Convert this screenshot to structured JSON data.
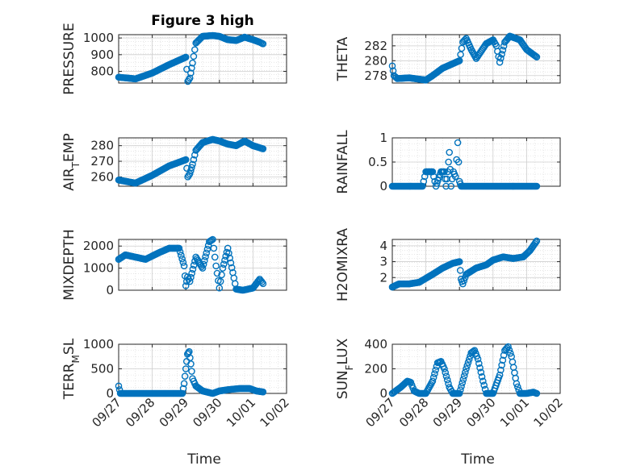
{
  "figure": {
    "title": "Figure 3 high",
    "marker_color": "#0072BD"
  },
  "chart_data": [
    {
      "type": "scatter",
      "key": "pressure",
      "title": "Figure 3 high",
      "ylabel": "PRESSURE",
      "ylabel_parts": [
        [
          "PRESSURE",
          "n"
        ]
      ],
      "xlabel": "",
      "xlim": [
        "09/27",
        "10/02"
      ],
      "ylim": [
        730,
        1020
      ],
      "yticks": [
        800,
        900,
        1000
      ],
      "yticklabels": [
        "800",
        "900",
        "1000"
      ],
      "xticklabels": [],
      "grid": true,
      "x_days": [
        0.0,
        0.5,
        1.0,
        1.5,
        2.0,
        2.06,
        2.12,
        2.2,
        2.3,
        2.5,
        2.8,
        3.0,
        3.25,
        3.5,
        3.75,
        4.0,
        4.2,
        4.3
      ],
      "y": [
        765,
        755,
        790,
        840,
        885,
        740,
        760,
        850,
        970,
        1010,
        1015,
        1010,
        990,
        985,
        1005,
        990,
        975,
        965
      ]
    },
    {
      "type": "scatter",
      "key": "theta",
      "ylabel": "THETA",
      "ylabel_parts": [
        [
          "THETA",
          "n"
        ]
      ],
      "xlabel": "",
      "xlim": [
        "09/27",
        "10/02"
      ],
      "ylim": [
        277,
        283.5
      ],
      "yticks": [
        278,
        280,
        282
      ],
      "yticklabels": [
        "278",
        "280",
        "282"
      ],
      "xticklabels": [],
      "grid": true,
      "x_days": [
        0.0,
        0.05,
        0.15,
        0.5,
        1.0,
        1.2,
        1.5,
        2.0,
        2.1,
        2.2,
        2.35,
        2.5,
        2.8,
        3.0,
        3.1,
        3.2,
        3.35,
        3.5,
        3.8,
        4.0,
        4.3
      ],
      "y": [
        279.3,
        278.0,
        277.6,
        277.7,
        277.4,
        278.0,
        279.0,
        280.0,
        282.5,
        283.0,
        281.5,
        280.3,
        282.3,
        282.8,
        282.0,
        279.8,
        282.5,
        283.3,
        282.8,
        281.5,
        280.5
      ]
    },
    {
      "type": "scatter",
      "key": "air_temp",
      "ylabel": "AIR_TEMP",
      "ylabel_parts": [
        [
          "AIR",
          "n"
        ],
        [
          "T",
          "sub"
        ],
        [
          "EMP",
          "n"
        ]
      ],
      "xlabel": "",
      "xlim": [
        "09/27",
        "10/02"
      ],
      "ylim": [
        254,
        285
      ],
      "yticks": [
        260,
        270,
        280
      ],
      "yticklabels": [
        "260",
        "270",
        "280"
      ],
      "xticklabels": [],
      "grid": true,
      "x_days": [
        0.0,
        0.5,
        1.0,
        1.5,
        2.0,
        2.06,
        2.12,
        2.2,
        2.3,
        2.5,
        2.8,
        3.0,
        3.25,
        3.5,
        3.75,
        4.0,
        4.3
      ],
      "y": [
        258,
        256,
        261,
        267,
        271,
        260,
        262,
        268,
        277,
        282,
        284,
        283,
        281,
        280,
        283,
        280,
        278
      ]
    },
    {
      "type": "scatter",
      "key": "rainfall",
      "ylabel": "RAINFALL",
      "ylabel_parts": [
        [
          "RAINFALL",
          "n"
        ]
      ],
      "xlabel": "",
      "xlim": [
        "09/27",
        "10/02"
      ],
      "ylim": [
        0,
        1
      ],
      "yticks": [
        0,
        0.5,
        1
      ],
      "yticklabels": [
        "0",
        "0.5",
        "1"
      ],
      "xticklabels": [],
      "grid": true,
      "x_days": [
        0.0,
        0.5,
        0.9,
        1.0,
        1.2,
        1.3,
        1.45,
        1.55,
        1.6,
        1.65,
        1.7,
        1.75,
        1.82,
        1.88,
        1.95,
        2.0,
        2.05,
        2.2,
        2.5,
        3.0,
        3.5,
        4.0,
        4.3
      ],
      "y": [
        0,
        0,
        0,
        0.3,
        0.3,
        0,
        0.3,
        0.3,
        0,
        0.3,
        0.7,
        0,
        0.3,
        0.2,
        0.9,
        0.1,
        0,
        0,
        0,
        0,
        0,
        0,
        0
      ]
    },
    {
      "type": "scatter",
      "key": "mixdepth",
      "ylabel": "MIXDEPTH",
      "ylabel_parts": [
        [
          "MIXDEPTH",
          "n"
        ]
      ],
      "xlabel": "",
      "xlim": [
        "09/27",
        "10/02"
      ],
      "ylim": [
        0,
        2300
      ],
      "yticks": [
        0,
        1000,
        2000
      ],
      "yticklabels": [
        "0",
        "1000",
        "2000"
      ],
      "xticklabels": [],
      "grid": true,
      "x_days": [
        0.0,
        0.2,
        0.5,
        0.8,
        1.2,
        1.5,
        1.8,
        1.95,
        2.0,
        2.05,
        2.12,
        2.3,
        2.5,
        2.7,
        2.8,
        2.9,
        3.0,
        3.1,
        3.25,
        3.4,
        3.5,
        3.7,
        4.0,
        4.2,
        4.3
      ],
      "y": [
        1400,
        1600,
        1500,
        1400,
        1700,
        1900,
        1900,
        1100,
        200,
        600,
        400,
        1500,
        1000,
        2200,
        2300,
        1100,
        100,
        1000,
        1900,
        800,
        50,
        0,
        100,
        500,
        300
      ]
    },
    {
      "type": "scatter",
      "key": "h2omixra",
      "ylabel": "H2OMIXRA",
      "ylabel_parts": [
        [
          "H2OMIXRA",
          "n"
        ]
      ],
      "xlabel": "",
      "xlim": [
        "09/27",
        "10/02"
      ],
      "ylim": [
        1.2,
        4.4
      ],
      "yticks": [
        2,
        3,
        4
      ],
      "yticklabels": [
        "2",
        "3",
        "4"
      ],
      "xticklabels": [],
      "grid": true,
      "x_days": [
        0.0,
        0.2,
        0.5,
        0.8,
        1.2,
        1.5,
        1.8,
        2.0,
        2.05,
        2.1,
        2.2,
        2.5,
        2.8,
        3.0,
        3.3,
        3.6,
        3.9,
        4.1,
        4.3
      ],
      "y": [
        1.4,
        1.6,
        1.6,
        1.7,
        2.2,
        2.6,
        2.9,
        3.0,
        1.9,
        1.6,
        2.2,
        2.6,
        2.8,
        3.1,
        3.3,
        3.2,
        3.3,
        3.7,
        4.3
      ]
    },
    {
      "type": "scatter",
      "key": "terr_msl",
      "ylabel": "TERR_MSL",
      "ylabel_parts": [
        [
          "TERR",
          "n"
        ],
        [
          "M",
          "sub"
        ],
        [
          "SL",
          "n"
        ]
      ],
      "xlabel": "Time",
      "xlim": [
        "09/27",
        "10/02"
      ],
      "ylim": [
        0,
        1000
      ],
      "yticks": [
        0,
        500,
        1000
      ],
      "yticklabels": [
        "0",
        "500",
        "1000"
      ],
      "xticklabels": [
        "09/27",
        "09/28",
        "09/29",
        "09/30",
        "10/01",
        "10/02"
      ],
      "grid": true,
      "x_days": [
        0.0,
        0.05,
        0.5,
        1.0,
        1.5,
        1.9,
        1.95,
        2.0,
        2.05,
        2.1,
        2.15,
        2.2,
        2.3,
        2.5,
        2.8,
        3.0,
        3.3,
        3.6,
        3.9,
        4.1,
        4.3
      ],
      "y": [
        150,
        0,
        0,
        0,
        0,
        0,
        200,
        500,
        800,
        850,
        600,
        300,
        150,
        50,
        0,
        50,
        80,
        100,
        100,
        50,
        30
      ]
    },
    {
      "type": "scatter",
      "key": "sun_flux",
      "ylabel": "SUN_FLUX",
      "ylabel_parts": [
        [
          "SUN",
          "n"
        ],
        [
          "F",
          "sub"
        ],
        [
          "LUX",
          "n"
        ]
      ],
      "xlabel": "Time",
      "xlim": [
        "09/27",
        "10/02"
      ],
      "ylim": [
        0,
        400
      ],
      "yticks": [
        0,
        200,
        400
      ],
      "yticklabels": [
        "0",
        "200",
        "400"
      ],
      "xticklabels": [
        "09/27",
        "09/28",
        "09/29",
        "09/30",
        "10/01",
        "10/02"
      ],
      "grid": true,
      "x_days": [
        0.0,
        0.25,
        0.45,
        0.55,
        0.65,
        0.8,
        1.0,
        1.2,
        1.35,
        1.45,
        1.55,
        1.7,
        1.8,
        2.0,
        2.2,
        2.35,
        2.45,
        2.55,
        2.7,
        2.8,
        3.0,
        3.2,
        3.35,
        3.45,
        3.55,
        3.7,
        3.8,
        4.0,
        4.2,
        4.3
      ],
      "y": [
        0,
        50,
        100,
        90,
        20,
        0,
        0,
        100,
        250,
        260,
        200,
        50,
        0,
        0,
        200,
        330,
        350,
        280,
        100,
        0,
        0,
        150,
        350,
        380,
        300,
        80,
        0,
        0,
        10,
        0
      ]
    }
  ]
}
